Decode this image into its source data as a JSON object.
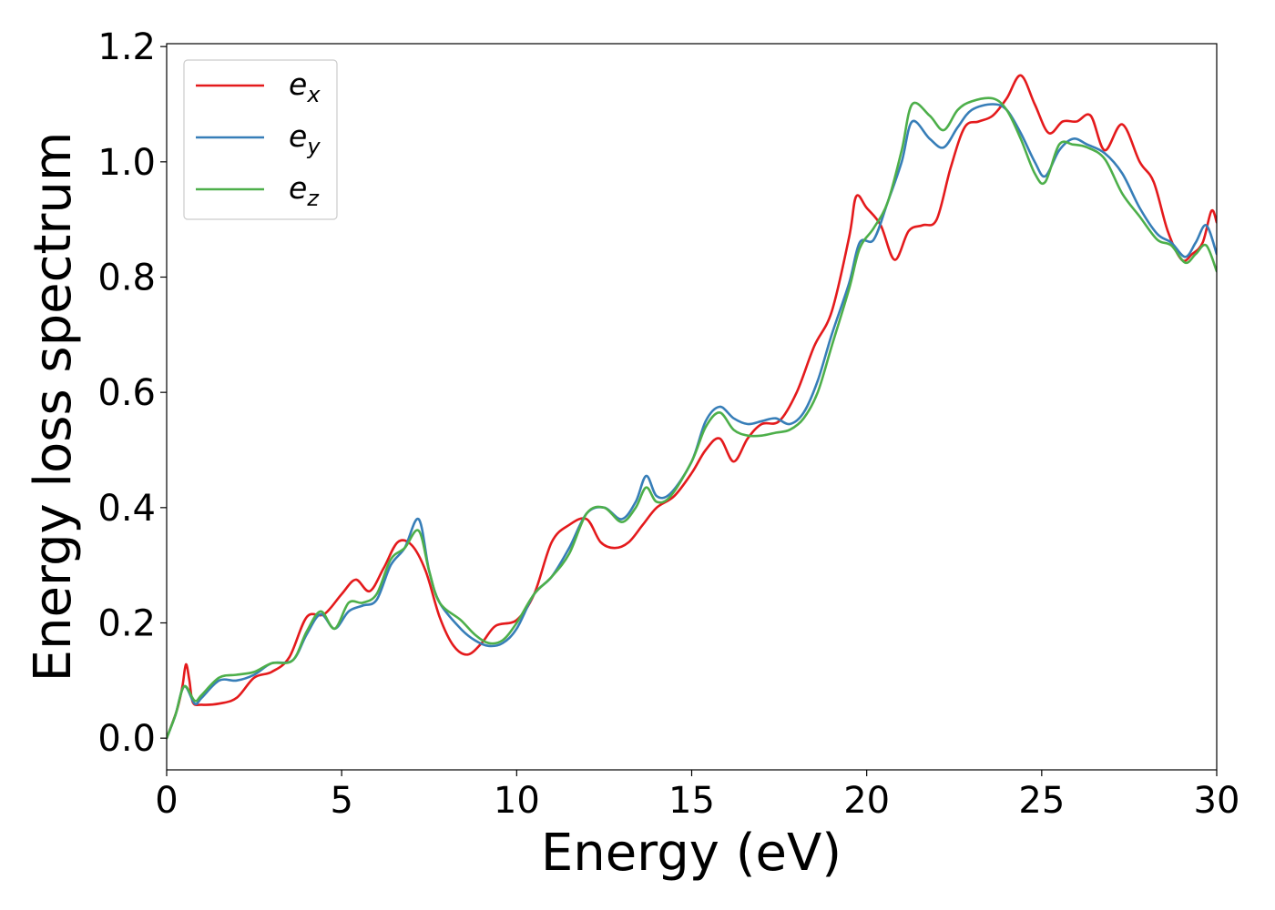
{
  "chart_data": {
    "type": "line",
    "title": "",
    "xlabel": "Energy (eV)",
    "ylabel": "Energy loss spectrum",
    "xlim": [
      0,
      30
    ],
    "ylim": [
      -0.055,
      1.205
    ],
    "xticks": [
      0,
      5,
      10,
      15,
      20,
      25,
      30
    ],
    "xtick_labels": [
      "0",
      "5",
      "10",
      "15",
      "20",
      "25",
      "30"
    ],
    "yticks": [
      0.0,
      0.2,
      0.4,
      0.6,
      0.8,
      1.0,
      1.2
    ],
    "ytick_labels": [
      "0.0",
      "0.2",
      "0.4",
      "0.6",
      "0.8",
      "1.0",
      "1.2"
    ],
    "grid": false,
    "legend_position": "top-left",
    "series": [
      {
        "name": "e_x",
        "legend_main": "e",
        "legend_sub": "x",
        "color": "#e41a1c",
        "points": [
          [
            0,
            0.0
          ],
          [
            0.3,
            0.05
          ],
          [
            0.45,
            0.09
          ],
          [
            0.55,
            0.128
          ],
          [
            0.65,
            0.1
          ],
          [
            0.75,
            0.062
          ],
          [
            1.0,
            0.058
          ],
          [
            1.5,
            0.06
          ],
          [
            2.0,
            0.07
          ],
          [
            2.5,
            0.105
          ],
          [
            3.0,
            0.115
          ],
          [
            3.5,
            0.14
          ],
          [
            4.0,
            0.21
          ],
          [
            4.5,
            0.215
          ],
          [
            5.0,
            0.25
          ],
          [
            5.4,
            0.275
          ],
          [
            5.8,
            0.255
          ],
          [
            6.2,
            0.295
          ],
          [
            6.6,
            0.34
          ],
          [
            7.0,
            0.335
          ],
          [
            7.4,
            0.29
          ],
          [
            7.8,
            0.21
          ],
          [
            8.2,
            0.16
          ],
          [
            8.6,
            0.145
          ],
          [
            9.0,
            0.165
          ],
          [
            9.4,
            0.195
          ],
          [
            10.0,
            0.205
          ],
          [
            10.5,
            0.25
          ],
          [
            11.0,
            0.34
          ],
          [
            11.5,
            0.37
          ],
          [
            12.0,
            0.38
          ],
          [
            12.4,
            0.34
          ],
          [
            12.8,
            0.33
          ],
          [
            13.2,
            0.34
          ],
          [
            13.6,
            0.37
          ],
          [
            14.0,
            0.4
          ],
          [
            14.5,
            0.42
          ],
          [
            15.0,
            0.46
          ],
          [
            15.4,
            0.5
          ],
          [
            15.8,
            0.52
          ],
          [
            16.2,
            0.48
          ],
          [
            16.6,
            0.52
          ],
          [
            17.0,
            0.545
          ],
          [
            17.5,
            0.55
          ],
          [
            18.0,
            0.6
          ],
          [
            18.5,
            0.68
          ],
          [
            19.0,
            0.74
          ],
          [
            19.5,
            0.87
          ],
          [
            19.7,
            0.94
          ],
          [
            20.0,
            0.92
          ],
          [
            20.4,
            0.89
          ],
          [
            20.8,
            0.83
          ],
          [
            21.2,
            0.88
          ],
          [
            21.6,
            0.89
          ],
          [
            22.0,
            0.9
          ],
          [
            22.4,
            0.99
          ],
          [
            22.8,
            1.06
          ],
          [
            23.2,
            1.07
          ],
          [
            23.6,
            1.08
          ],
          [
            24.0,
            1.11
          ],
          [
            24.4,
            1.15
          ],
          [
            24.8,
            1.1
          ],
          [
            25.2,
            1.05
          ],
          [
            25.6,
            1.07
          ],
          [
            26.0,
            1.07
          ],
          [
            26.4,
            1.08
          ],
          [
            26.8,
            1.02
          ],
          [
            27.3,
            1.065
          ],
          [
            27.8,
            1.0
          ],
          [
            28.2,
            0.965
          ],
          [
            28.6,
            0.88
          ],
          [
            29.0,
            0.83
          ],
          [
            29.3,
            0.84
          ],
          [
            29.6,
            0.86
          ],
          [
            29.85,
            0.915
          ],
          [
            30.0,
            0.895
          ]
        ]
      },
      {
        "name": "e_y",
        "legend_main": "e",
        "legend_sub": "y",
        "color": "#377eb8",
        "points": [
          [
            0,
            0.0
          ],
          [
            0.25,
            0.04
          ],
          [
            0.5,
            0.09
          ],
          [
            0.8,
            0.06
          ],
          [
            1.0,
            0.07
          ],
          [
            1.5,
            0.1
          ],
          [
            2.0,
            0.1
          ],
          [
            2.5,
            0.11
          ],
          [
            3.0,
            0.13
          ],
          [
            3.6,
            0.135
          ],
          [
            4.0,
            0.18
          ],
          [
            4.4,
            0.215
          ],
          [
            4.8,
            0.19
          ],
          [
            5.2,
            0.22
          ],
          [
            5.6,
            0.23
          ],
          [
            6.0,
            0.24
          ],
          [
            6.4,
            0.3
          ],
          [
            6.8,
            0.33
          ],
          [
            7.2,
            0.38
          ],
          [
            7.5,
            0.29
          ],
          [
            7.8,
            0.235
          ],
          [
            8.4,
            0.19
          ],
          [
            8.8,
            0.17
          ],
          [
            9.2,
            0.16
          ],
          [
            9.6,
            0.165
          ],
          [
            10.0,
            0.19
          ],
          [
            10.5,
            0.25
          ],
          [
            11.0,
            0.28
          ],
          [
            11.5,
            0.33
          ],
          [
            12.0,
            0.39
          ],
          [
            12.5,
            0.4
          ],
          [
            13.0,
            0.38
          ],
          [
            13.4,
            0.41
          ],
          [
            13.7,
            0.455
          ],
          [
            14.0,
            0.42
          ],
          [
            14.4,
            0.425
          ],
          [
            15.0,
            0.48
          ],
          [
            15.4,
            0.55
          ],
          [
            15.8,
            0.575
          ],
          [
            16.2,
            0.555
          ],
          [
            16.6,
            0.545
          ],
          [
            17.0,
            0.55
          ],
          [
            17.4,
            0.555
          ],
          [
            17.8,
            0.545
          ],
          [
            18.2,
            0.565
          ],
          [
            18.6,
            0.62
          ],
          [
            19.0,
            0.7
          ],
          [
            19.5,
            0.79
          ],
          [
            19.8,
            0.86
          ],
          [
            20.2,
            0.865
          ],
          [
            20.6,
            0.93
          ],
          [
            21.0,
            1.0
          ],
          [
            21.3,
            1.07
          ],
          [
            21.8,
            1.04
          ],
          [
            22.2,
            1.025
          ],
          [
            22.6,
            1.06
          ],
          [
            23.0,
            1.09
          ],
          [
            23.6,
            1.1
          ],
          [
            24.0,
            1.09
          ],
          [
            24.4,
            1.05
          ],
          [
            24.8,
            1.0
          ],
          [
            25.1,
            0.975
          ],
          [
            25.5,
            1.02
          ],
          [
            25.9,
            1.04
          ],
          [
            26.3,
            1.03
          ],
          [
            26.8,
            1.015
          ],
          [
            27.3,
            0.98
          ],
          [
            27.8,
            0.92
          ],
          [
            28.3,
            0.875
          ],
          [
            28.7,
            0.86
          ],
          [
            29.1,
            0.835
          ],
          [
            29.4,
            0.86
          ],
          [
            29.7,
            0.89
          ],
          [
            30.0,
            0.84
          ]
        ]
      },
      {
        "name": "e_z",
        "legend_main": "e",
        "legend_sub": "z",
        "color": "#4daf4a",
        "points": [
          [
            0,
            0.0
          ],
          [
            0.25,
            0.04
          ],
          [
            0.5,
            0.09
          ],
          [
            0.8,
            0.065
          ],
          [
            1.0,
            0.075
          ],
          [
            1.5,
            0.105
          ],
          [
            2.0,
            0.11
          ],
          [
            2.5,
            0.115
          ],
          [
            3.0,
            0.13
          ],
          [
            3.6,
            0.135
          ],
          [
            4.0,
            0.185
          ],
          [
            4.4,
            0.22
          ],
          [
            4.8,
            0.19
          ],
          [
            5.2,
            0.235
          ],
          [
            5.6,
            0.235
          ],
          [
            6.0,
            0.25
          ],
          [
            6.4,
            0.31
          ],
          [
            6.8,
            0.33
          ],
          [
            7.2,
            0.36
          ],
          [
            7.5,
            0.29
          ],
          [
            7.8,
            0.235
          ],
          [
            8.4,
            0.205
          ],
          [
            8.8,
            0.18
          ],
          [
            9.2,
            0.165
          ],
          [
            9.6,
            0.17
          ],
          [
            10.0,
            0.2
          ],
          [
            10.5,
            0.25
          ],
          [
            11.0,
            0.28
          ],
          [
            11.5,
            0.32
          ],
          [
            12.0,
            0.39
          ],
          [
            12.5,
            0.4
          ],
          [
            13.0,
            0.375
          ],
          [
            13.4,
            0.4
          ],
          [
            13.7,
            0.435
          ],
          [
            14.0,
            0.41
          ],
          [
            14.4,
            0.42
          ],
          [
            15.0,
            0.48
          ],
          [
            15.4,
            0.54
          ],
          [
            15.8,
            0.565
          ],
          [
            16.2,
            0.535
          ],
          [
            16.6,
            0.525
          ],
          [
            17.0,
            0.525
          ],
          [
            17.4,
            0.53
          ],
          [
            17.8,
            0.535
          ],
          [
            18.2,
            0.555
          ],
          [
            18.6,
            0.6
          ],
          [
            19.0,
            0.68
          ],
          [
            19.5,
            0.78
          ],
          [
            19.8,
            0.85
          ],
          [
            20.2,
            0.885
          ],
          [
            20.6,
            0.93
          ],
          [
            21.0,
            1.02
          ],
          [
            21.3,
            1.1
          ],
          [
            21.8,
            1.08
          ],
          [
            22.2,
            1.055
          ],
          [
            22.6,
            1.09
          ],
          [
            23.0,
            1.105
          ],
          [
            23.6,
            1.11
          ],
          [
            24.0,
            1.09
          ],
          [
            24.4,
            1.04
          ],
          [
            24.8,
            0.98
          ],
          [
            25.1,
            0.965
          ],
          [
            25.5,
            1.03
          ],
          [
            25.9,
            1.03
          ],
          [
            26.3,
            1.025
          ],
          [
            26.8,
            1.005
          ],
          [
            27.3,
            0.945
          ],
          [
            27.8,
            0.905
          ],
          [
            28.3,
            0.865
          ],
          [
            28.7,
            0.855
          ],
          [
            29.1,
            0.825
          ],
          [
            29.4,
            0.84
          ],
          [
            29.7,
            0.855
          ],
          [
            30.0,
            0.81
          ]
        ]
      }
    ]
  }
}
